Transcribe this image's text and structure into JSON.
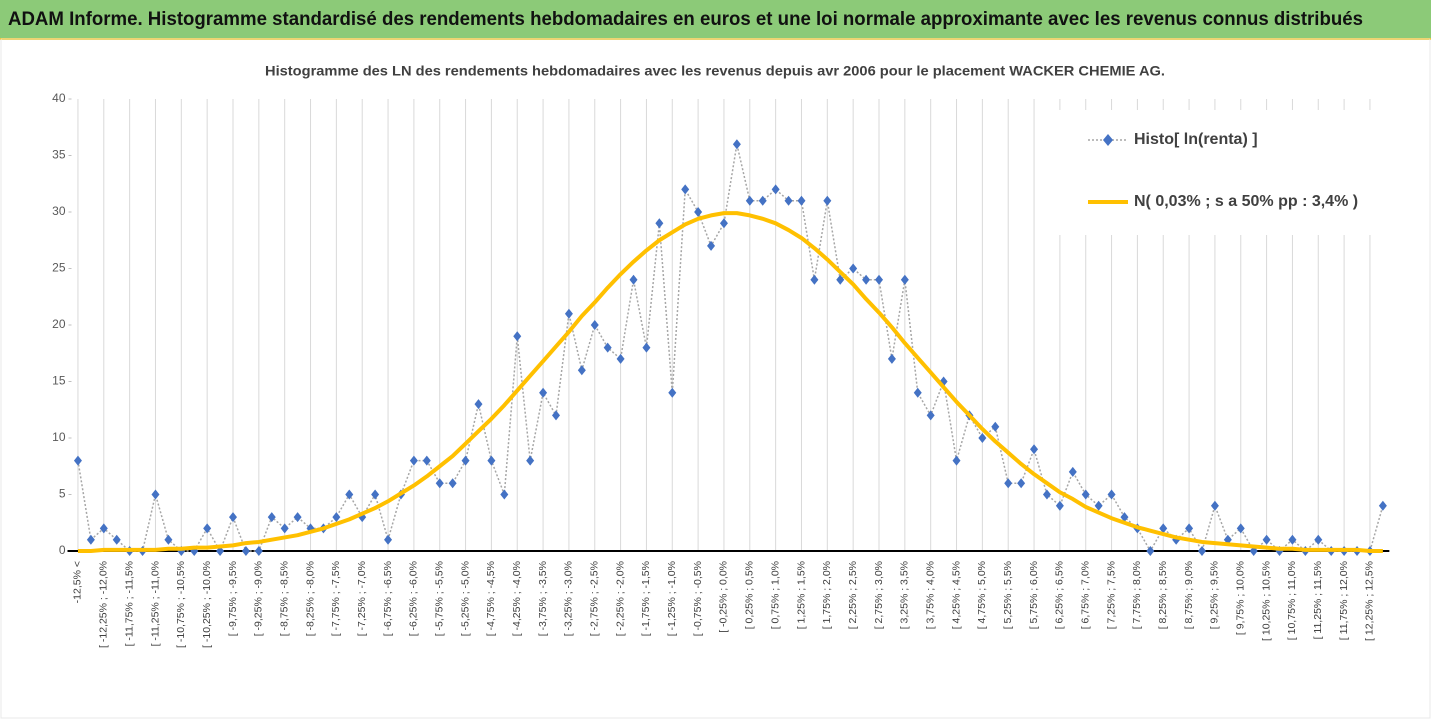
{
  "chart_data": {
    "type": "line",
    "header": "ADAM Informe. Histogramme standardisé des rendements hebdomadaires en euros et une loi normale approximante avec les revenus connus distribués",
    "title": "Histogramme des LN des rendements hebdomadaires avec les revenus depuis avr 2006 pour le placement WACKER CHEMIE AG.",
    "categories": [
      "-12,5% <",
      null,
      "[ -12,25% ; -12,0%",
      null,
      "[ -11,75% ; -11,5%",
      null,
      "[ -11,25% ; -11,0%",
      null,
      "[ -10,75% ; -10,5%",
      null,
      "[ -10,25% ; -10,0%",
      null,
      "[ -9,75% ; -9,5%",
      null,
      "[ -9,25% ; -9,0%",
      null,
      "[ -8,75% ; -8,5%",
      null,
      "[ -8,25% ; -8,0%",
      null,
      "[ -7,75% ; -7,5%",
      null,
      "[ -7,25% ; -7,0%",
      null,
      "[ -6,75% ; -6,5%",
      null,
      "[ -6,25% ; -6,0%",
      null,
      "[ -5,75% ; -5,5%",
      null,
      "[ -5,25% ; -5,0%",
      null,
      "[ -4,75% ; -4,5%",
      null,
      "[ -4,25% ; -4,0%",
      null,
      "[ -3,75% ; -3,5%",
      null,
      "[ -3,25% ; -3,0%",
      null,
      "[ -2,75% ; -2,5%",
      null,
      "[ -2,25% ; -2,0%",
      null,
      "[ -1,75% ; -1,5%",
      null,
      "[ -1,25% ; -1,0%",
      null,
      "[ -0,75% ; -0,5%",
      null,
      "[ -0,25% ; 0,0%",
      null,
      "[ 0,25% ; 0,5%",
      null,
      "[ 0,75% ; 1,0%",
      null,
      "[ 1,25% ; 1,5%",
      null,
      "[ 1,75% ; 2,0%",
      null,
      "[ 2,25% ; 2,5%",
      null,
      "[ 2,75% ; 3,0%",
      null,
      "[ 3,25% ; 3,5%",
      null,
      "[ 3,75% ; 4,0%",
      null,
      "[ 4,25% ; 4,5%",
      null,
      "[ 4,75% ; 5,0%",
      null,
      "[ 5,25% ; 5,5%",
      null,
      "[ 5,75% ; 6,0%",
      null,
      "[ 6,25% ; 6,5%",
      null,
      "[ 6,75% ; 7,0%",
      null,
      "[ 7,25% ; 7,5%",
      null,
      "[ 7,75% ; 8,0%",
      null,
      "[ 8,25% ; 8,5%",
      null,
      "[ 8,75% ; 9,0%",
      null,
      "[ 9,25% ; 9,5%",
      null,
      "[ 9,75% ; 10,0%",
      null,
      "[ 10,25% ; 10,5%",
      null,
      "[ 10,75% ; 11,0%",
      null,
      "[ 11,25% ; 11,5%",
      null,
      "[ 11,75% ; 12,0%",
      null,
      "[ 12,25% ; 12,5%",
      null
    ],
    "series": [
      {
        "name": "Histo[ ln(renta) ]",
        "color": "#4472c4",
        "line_color": "#a6a6a6",
        "values": [
          8,
          1,
          2,
          1,
          0,
          0,
          5,
          1,
          0,
          0,
          2,
          0,
          3,
          0,
          0,
          3,
          2,
          3,
          2,
          2,
          3,
          5,
          3,
          5,
          1,
          5,
          8,
          8,
          6,
          6,
          8,
          13,
          8,
          5,
          19,
          8,
          14,
          12,
          21,
          16,
          20,
          18,
          17,
          24,
          18,
          29,
          14,
          32,
          30,
          27,
          29,
          36,
          31,
          31,
          32,
          31,
          31,
          24,
          31,
          24,
          25,
          24,
          24,
          17,
          24,
          14,
          12,
          15,
          8,
          12,
          10,
          11,
          6,
          6,
          9,
          5,
          4,
          7,
          5,
          4,
          5,
          3,
          2,
          0,
          2,
          1,
          2,
          0,
          4,
          1,
          2,
          0,
          1,
          0,
          1,
          0,
          1,
          0,
          0,
          0,
          0,
          4
        ]
      },
      {
        "name": "N( 0,03% ; s a 50% pp : 3,4% )",
        "color": "#ffc000",
        "values": [
          0.0,
          0.0,
          0.1,
          0.1,
          0.1,
          0.1,
          0.1,
          0.2,
          0.2,
          0.3,
          0.3,
          0.4,
          0.5,
          0.7,
          0.8,
          1.0,
          1.2,
          1.4,
          1.7,
          2.0,
          2.4,
          2.8,
          3.3,
          3.8,
          4.4,
          5.1,
          5.8,
          6.6,
          7.5,
          8.4,
          9.5,
          10.6,
          11.7,
          12.9,
          14.2,
          15.5,
          16.8,
          18.1,
          19.4,
          20.8,
          22.0,
          23.3,
          24.5,
          25.6,
          26.6,
          27.5,
          28.2,
          28.9,
          29.4,
          29.7,
          29.9,
          29.9,
          29.7,
          29.4,
          29.0,
          28.4,
          27.7,
          26.8,
          25.8,
          24.7,
          23.6,
          22.3,
          21.1,
          19.8,
          18.4,
          17.1,
          15.8,
          14.5,
          13.2,
          12.0,
          10.8,
          9.7,
          8.7,
          7.7,
          6.8,
          6.0,
          5.2,
          4.6,
          3.9,
          3.4,
          2.9,
          2.5,
          2.1,
          1.8,
          1.5,
          1.2,
          1.0,
          0.8,
          0.7,
          0.6,
          0.5,
          0.4,
          0.3,
          0.2,
          0.2,
          0.1,
          0.1,
          0.1,
          0.1,
          0.1,
          0.0,
          0.0
        ]
      }
    ],
    "ylim": [
      0,
      40
    ],
    "yticks": [
      0,
      5,
      10,
      15,
      20,
      25,
      30,
      35,
      40
    ],
    "grid": "vertical",
    "legend": "upper right"
  }
}
